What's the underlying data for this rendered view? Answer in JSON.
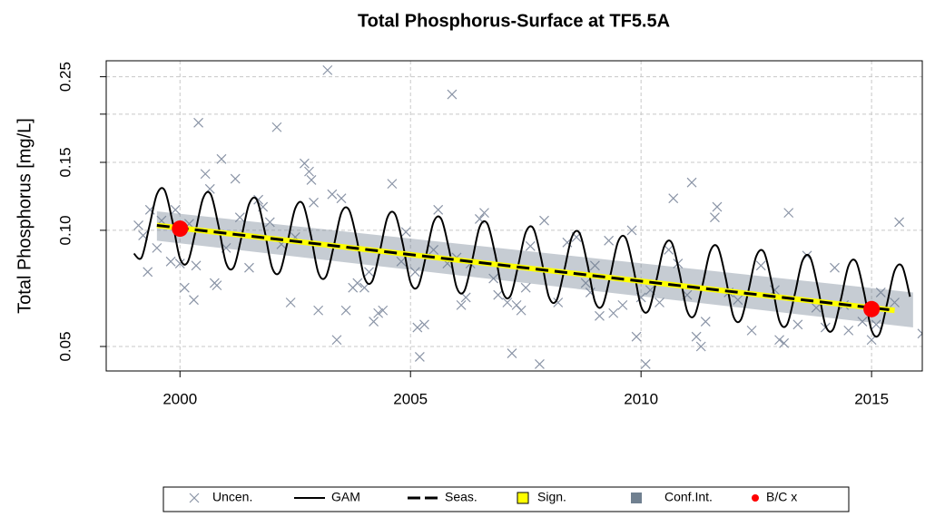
{
  "chart_data": {
    "type": "line",
    "title": "Total Phosphorus-Surface at TF5.5A",
    "y_label": "Total Phosphorus [mg/L]",
    "log_y": true,
    "grid": true,
    "xlim": [
      1998.4,
      2016.1
    ],
    "ylim": [
      0.0432,
      0.275
    ],
    "xticks": [
      2000,
      2005,
      2010,
      2015
    ],
    "yticks": [
      0.05,
      {
        "value": 0.1,
        "label": "0.10"
      },
      0.15,
      0.25
    ],
    "yticks_unlabeled": [
      0.2
    ],
    "legend": "bottom",
    "series": [
      {
        "name": "Uncen.",
        "type": "scatter",
        "color": "#8a94a6",
        "x": [
          1999.1,
          1999.2,
          1999.3,
          1999.35,
          1999.5,
          1999.6,
          1999.8,
          1999.9,
          2000.0,
          2000.1,
          2000.2,
          2000.3,
          2000.35,
          2000.4,
          2000.55,
          2000.65,
          2000.75,
          2000.8,
          2000.9,
          2001.0,
          2001.2,
          2001.3,
          2001.5,
          2001.7,
          2001.8,
          2001.95,
          2002.1,
          2002.2,
          2002.4,
          2002.5,
          2002.7,
          2002.8,
          2002.85,
          2002.9,
          2003.0,
          2003.2,
          2003.3,
          2003.4,
          2003.5,
          2003.6,
          2003.75,
          2003.85,
          2004.0,
          2004.1,
          2004.2,
          2004.3,
          2004.4,
          2004.6,
          2004.8,
          2004.9,
          2005.1,
          2005.15,
          2005.2,
          2005.3,
          2005.5,
          2005.6,
          2005.8,
          2005.9,
          2006.0,
          2006.1,
          2006.2,
          2006.3,
          2006.5,
          2006.6,
          2006.8,
          2006.9,
          2007.1,
          2007.2,
          2007.3,
          2007.4,
          2007.5,
          2007.6,
          2007.8,
          2007.9,
          2008.2,
          2008.4,
          2008.6,
          2008.8,
          2008.9,
          2009.0,
          2009.1,
          2009.3,
          2009.4,
          2009.6,
          2009.8,
          2009.9,
          2010.0,
          2010.1,
          2010.2,
          2010.4,
          2010.6,
          2010.7,
          2010.8,
          2011.0,
          2011.1,
          2011.2,
          2011.3,
          2011.4,
          2011.6,
          2011.65,
          2011.9,
          2012.1,
          2012.4,
          2012.6,
          2012.9,
          2013.0,
          2013.1,
          2013.2,
          2013.4,
          2013.6,
          2013.8,
          2014.0,
          2014.2,
          2014.4,
          2014.5,
          2014.8,
          2015.0,
          2015.1,
          2015.2,
          2015.5,
          2015.6,
          2016.1
        ],
        "values": [
          0.103,
          0.097,
          0.078,
          0.113,
          0.09,
          0.106,
          0.083,
          0.113,
          0.082,
          0.071,
          0.104,
          0.066,
          0.081,
          0.19,
          0.14,
          0.128,
          0.073,
          0.072,
          0.153,
          0.09,
          0.136,
          0.108,
          0.08,
          0.12,
          0.115,
          0.105,
          0.185,
          0.092,
          0.065,
          0.096,
          0.149,
          0.142,
          0.135,
          0.118,
          0.062,
          0.26,
          0.124,
          0.052,
          0.121,
          0.062,
          0.071,
          0.073,
          0.071,
          0.078,
          0.058,
          0.061,
          0.062,
          0.132,
          0.083,
          0.099,
          0.078,
          0.056,
          0.047,
          0.057,
          0.089,
          0.113,
          0.082,
          0.225,
          0.085,
          0.064,
          0.067,
          0.082,
          0.107,
          0.111,
          0.075,
          0.068,
          0.065,
          0.048,
          0.064,
          0.062,
          0.071,
          0.091,
          0.045,
          0.106,
          0.065,
          0.093,
          0.096,
          0.073,
          0.069,
          0.081,
          0.06,
          0.094,
          0.061,
          0.064,
          0.1,
          0.053,
          0.067,
          0.045,
          0.07,
          0.065,
          0.089,
          0.121,
          0.082,
          0.068,
          0.133,
          0.053,
          0.05,
          0.058,
          0.108,
          0.115,
          0.069,
          0.066,
          0.055,
          0.081,
          0.07,
          0.052,
          0.051,
          0.111,
          0.057,
          0.086,
          0.063,
          0.056,
          0.08,
          0.064,
          0.055,
          0.058,
          0.052,
          0.057,
          0.069,
          0.065,
          0.105,
          0.054
        ]
      },
      {
        "name": "Conf.Int.",
        "type": "band",
        "color": "#708090",
        "opacity": 0.4,
        "x": [
          1999.5,
          2015.9
        ],
        "lower": [
          0.094,
          0.056
        ],
        "upper": [
          0.112,
          0.069
        ]
      },
      {
        "name": "GAM",
        "type": "line",
        "color": "#000000",
        "x": [
          1999,
          1999.167,
          1999.333,
          1999.5,
          1999.667,
          1999.833,
          2000,
          2000.167,
          2000.333,
          2000.5,
          2000.667,
          2000.833,
          2001,
          2001.167,
          2001.333,
          2001.5,
          2001.667,
          2001.833,
          2002,
          2002.167,
          2002.333,
          2002.5,
          2002.667,
          2002.833,
          2003,
          2003.167,
          2003.333,
          2003.5,
          2003.667,
          2003.833,
          2004,
          2004.167,
          2004.333,
          2004.5,
          2004.667,
          2004.833,
          2005,
          2005.167,
          2005.333,
          2005.5,
          2005.667,
          2005.833,
          2006,
          2006.167,
          2006.333,
          2006.5,
          2006.667,
          2006.833,
          2007,
          2007.167,
          2007.333,
          2007.5,
          2007.667,
          2007.833,
          2008,
          2008.167,
          2008.333,
          2008.5,
          2008.667,
          2008.833,
          2009,
          2009.167,
          2009.333,
          2009.5,
          2009.667,
          2009.833,
          2010,
          2010.167,
          2010.333,
          2010.5,
          2010.667,
          2010.833,
          2011,
          2011.167,
          2011.333,
          2011.5,
          2011.667,
          2011.833,
          2012,
          2012.167,
          2012.333,
          2012.5,
          2012.667,
          2012.833,
          2013,
          2013.167,
          2013.333,
          2013.5,
          2013.667,
          2013.833,
          2014,
          2014.167,
          2014.333,
          2014.5,
          2014.667,
          2014.833,
          2015,
          2015.167,
          2015.333,
          2015.5,
          2015.667,
          2015.833
        ],
        "values": [
          0.087,
          0.085,
          0.102,
          0.124,
          0.127,
          0.106,
          0.0846,
          0.0827,
          0.0988,
          0.121,
          0.124,
          0.103,
          0.0822,
          0.0803,
          0.0959,
          0.117,
          0.12,
          0.1,
          0.0799,
          0.0781,
          0.0933,
          0.114,
          0.117,
          0.0977,
          0.0777,
          0.0759,
          0.0907,
          0.111,
          0.113,
          0.0949,
          0.0754,
          0.0737,
          0.088,
          0.108,
          0.11,
          0.0922,
          0.0733,
          0.0717,
          0.0856,
          0.105,
          0.107,
          0.0896,
          0.0712,
          0.0696,
          0.0831,
          0.102,
          0.104,
          0.0871,
          0.0692,
          0.0676,
          0.0808,
          0.0988,
          0.101,
          0.0846,
          0.0673,
          0.0658,
          0.0786,
          0.0961,
          0.0983,
          0.0822,
          0.0654,
          0.0639,
          0.0763,
          0.0933,
          0.0955,
          0.0799,
          0.0635,
          0.0621,
          0.0742,
          0.0907,
          0.0928,
          0.0776,
          0.0618,
          0.0604,
          0.0721,
          0.0882,
          0.0903,
          0.0755,
          0.06,
          0.0587,
          0.07,
          0.0857,
          0.0877,
          0.0733,
          0.0583,
          0.057,
          0.0681,
          0.0833,
          0.0852,
          0.0713,
          0.0567,
          0.0554,
          0.0661,
          0.0809,
          0.0828,
          0.0693,
          0.0551,
          0.0538,
          0.0643,
          0.0786,
          0.0805,
          0.0673
        ]
      },
      {
        "name": "Seas.",
        "type": "trend",
        "color": "#000000",
        "sign_name": "Sign.",
        "sign_color": "#ffff00",
        "x": [
          1999.5,
          2015.5
        ],
        "values": [
          0.103,
          0.062
        ]
      },
      {
        "name": "B/C x",
        "type": "points",
        "color": "#ff0000",
        "x": [
          2000.0,
          2015.0
        ],
        "values": [
          0.101,
          0.0625
        ]
      }
    ]
  }
}
